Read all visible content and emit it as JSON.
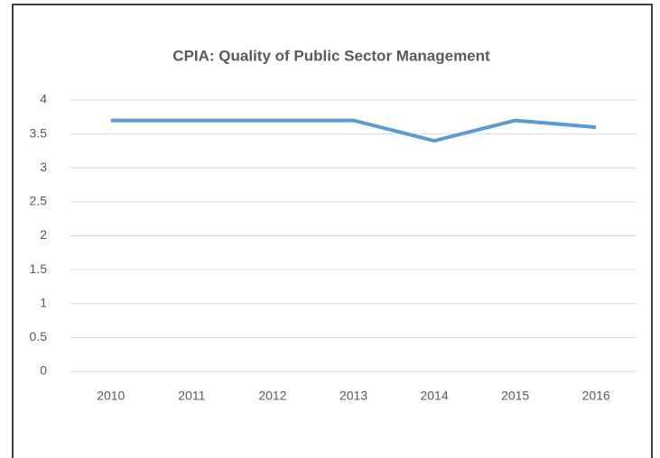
{
  "chart_data": {
    "type": "line",
    "title": "CPIA: Quality of Public Sector Management",
    "categories": [
      "2010",
      "2011",
      "2012",
      "2013",
      "2014",
      "2015",
      "2016"
    ],
    "series": [
      {
        "name": "CPIA",
        "color": "#5b9bd5",
        "values": [
          3.7,
          3.7,
          3.7,
          3.7,
          3.4,
          3.7,
          3.6
        ]
      }
    ],
    "ylim": [
      0,
      4
    ],
    "yticks": [
      0,
      0.5,
      1,
      1.5,
      2,
      2.5,
      3,
      3.5,
      4
    ],
    "grid": true
  }
}
